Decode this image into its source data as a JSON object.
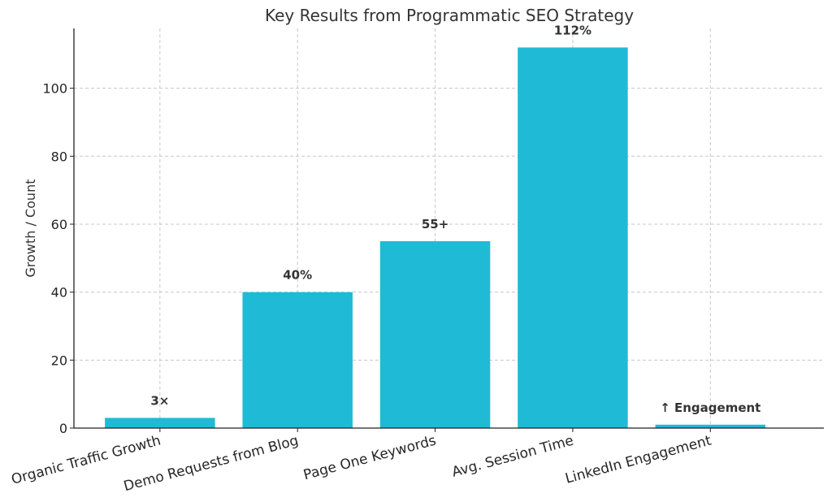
{
  "chart_data": {
    "type": "bar",
    "title": "Key Results from Programmatic SEO Strategy",
    "xlabel": "",
    "ylabel": "Growth / Count",
    "categories": [
      "Organic Traffic Growth",
      "Demo Requests from Blog",
      "Page One Keywords",
      "Avg. Session Time",
      "LinkedIn Engagement"
    ],
    "values": [
      3,
      40,
      55,
      112,
      1
    ],
    "data_labels": [
      "3×",
      "40%",
      "55+",
      "112%",
      "↑ Engagement"
    ],
    "ylim": [
      0,
      117.6
    ],
    "yticks": [
      0,
      20,
      40,
      60,
      80,
      100
    ],
    "grid": true,
    "bar_color": "#1fbad6",
    "legend": "none"
  }
}
